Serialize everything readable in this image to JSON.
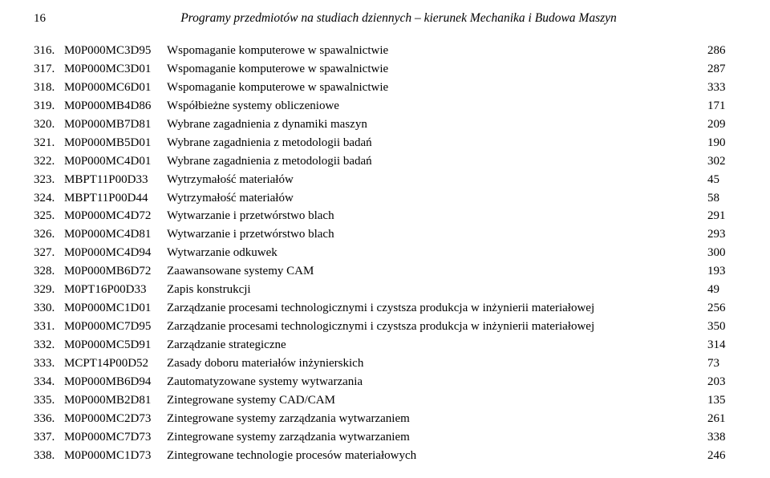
{
  "page_number": "16",
  "page_title": "Programy przedmiotów na studiach dziennych – kierunek Mechanika i Budowa Maszyn",
  "rows": [
    {
      "idx": "316.",
      "code": "M0P000MC3D95",
      "desc": "Wspomaganie komputerowe w spawalnictwie",
      "pg": "286"
    },
    {
      "idx": "317.",
      "code": "M0P000MC3D01",
      "desc": "Wspomaganie komputerowe w spawalnictwie",
      "pg": "287"
    },
    {
      "idx": "318.",
      "code": "M0P000MC6D01",
      "desc": "Wspomaganie komputerowe w spawalnictwie",
      "pg": "333"
    },
    {
      "idx": "319.",
      "code": "M0P000MB4D86",
      "desc": "Współbieżne systemy obliczeniowe",
      "pg": "171"
    },
    {
      "idx": "320.",
      "code": "M0P000MB7D81",
      "desc": "Wybrane zagadnienia z dynamiki maszyn",
      "pg": "209"
    },
    {
      "idx": "321.",
      "code": "M0P000MB5D01",
      "desc": "Wybrane zagadnienia z metodologii badań",
      "pg": "190"
    },
    {
      "idx": "322.",
      "code": "M0P000MC4D01",
      "desc": "Wybrane zagadnienia z metodologii badań",
      "pg": "302"
    },
    {
      "idx": "323.",
      "code": "MBPT11P00D33",
      "desc": "Wytrzymałość materiałów",
      "pg": "45"
    },
    {
      "idx": "324.",
      "code": "MBPT11P00D44",
      "desc": "Wytrzymałość materiałów",
      "pg": "58"
    },
    {
      "idx": "325.",
      "code": "M0P000MC4D72",
      "desc": "Wytwarzanie i przetwórstwo blach",
      "pg": "291"
    },
    {
      "idx": "326.",
      "code": "M0P000MC4D81",
      "desc": "Wytwarzanie i przetwórstwo blach",
      "pg": "293"
    },
    {
      "idx": "327.",
      "code": "M0P000MC4D94",
      "desc": "Wytwarzanie odkuwek",
      "pg": "300"
    },
    {
      "idx": "328.",
      "code": "M0P000MB6D72",
      "desc": "Zaawansowane systemy CAM",
      "pg": "193"
    },
    {
      "idx": "329.",
      "code": "M0PT16P00D33",
      "desc": "Zapis konstrukcji",
      "pg": "49"
    },
    {
      "idx": "330.",
      "code": "M0P000MC1D01",
      "desc": "Zarządzanie procesami technologicznymi i czystsza produkcja w inżynierii materiałowej",
      "pg": "256"
    },
    {
      "idx": "331.",
      "code": "M0P000MC7D95",
      "desc": "Zarządzanie procesami technologicznymi i czystsza produkcja w inżynierii materiałowej",
      "pg": "350"
    },
    {
      "idx": "332.",
      "code": "M0P000MC5D91",
      "desc": "Zarządzanie strategiczne",
      "pg": "314"
    },
    {
      "idx": "333.",
      "code": "MCPT14P00D52",
      "desc": "Zasady doboru materiałów inżynierskich",
      "pg": "73"
    },
    {
      "idx": "334.",
      "code": "M0P000MB6D94",
      "desc": "Zautomatyzowane systemy wytwarzania",
      "pg": "203"
    },
    {
      "idx": "335.",
      "code": "M0P000MB2D81",
      "desc": "Zintegrowane systemy CAD/CAM",
      "pg": "135"
    },
    {
      "idx": "336.",
      "code": "M0P000MC2D73",
      "desc": "Zintegrowane systemy zarządzania wytwarzaniem",
      "pg": "261"
    },
    {
      "idx": "337.",
      "code": "M0P000MC7D73",
      "desc": "Zintegrowane systemy zarządzania wytwarzaniem",
      "pg": "338"
    },
    {
      "idx": "338.",
      "code": "M0P000MC1D73",
      "desc": "Zintegrowane technologie procesów materiałowych",
      "pg": "246"
    }
  ]
}
